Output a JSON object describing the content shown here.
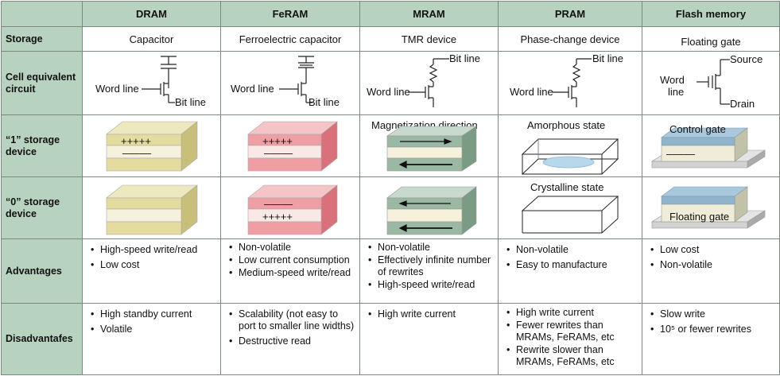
{
  "columns": [
    "DRAM",
    "FeRAM",
    "MRAM",
    "PRAM",
    "Flash memory"
  ],
  "rows": {
    "storage": {
      "label": "Storage",
      "values": [
        "Capacitor",
        "Ferroelectric capacitor",
        "TMR device",
        "Phase-change device",
        "Floating gate"
      ]
    },
    "circuit": {
      "label": "Cell equivalent circuit",
      "labels": {
        "word_line": "Word line",
        "bit_line": "Bit line",
        "source": "Source",
        "drain": "Drain"
      }
    },
    "one": {
      "label": "“1” storage device",
      "dram": {
        "top": "+++++",
        "bottom": "–––––"
      },
      "feram": {
        "top": "+++++",
        "bottom": "–––––"
      },
      "mram": "Magnetization direction",
      "pram": "Amorphous state",
      "flash": "Control gate",
      "flash_charge": "–––––"
    },
    "zero": {
      "label": "“0” storage device",
      "feram": {
        "top": "–––––",
        "bottom": "+++++"
      },
      "pram": "Crystalline state",
      "flash": "Floating gate"
    },
    "advantages": {
      "label": "Advantages",
      "values": [
        [
          "High-speed write/read",
          "Low cost"
        ],
        [
          "Non-volatile",
          "Low current consumption",
          "Medium-speed write/read"
        ],
        [
          "Non-volatile",
          "Effectively infinite number of rewrites",
          "High-speed write/read"
        ],
        [
          "Non-volatile",
          "Easy to manufacture"
        ],
        [
          "Low cost",
          "Non-volatile"
        ]
      ]
    },
    "disadvantages": {
      "label": "Disadvantafes",
      "values": [
        [
          "High standby current",
          "Volatile"
        ],
        [
          "Scalability (not easy to port to smaller line widths)",
          "Destructive read"
        ],
        [
          "High write current"
        ],
        [
          "High write current",
          "Fewer rewrites than MRAMs, FeRAMs, etc",
          "Rewrite slower than MRAMs, FeRAMs, etc"
        ],
        [
          "Slow write",
          "10⁵ or fewer rewrites"
        ]
      ]
    }
  },
  "colors": {
    "header_bg": "#b8d2c0",
    "dram_layer": "#e4dc9e",
    "feram_layer": "#ef9ea4",
    "mram_layer": "#9ab8a2",
    "flash_gate": "#8fb4cc",
    "insulator": "#f5f1dc"
  }
}
